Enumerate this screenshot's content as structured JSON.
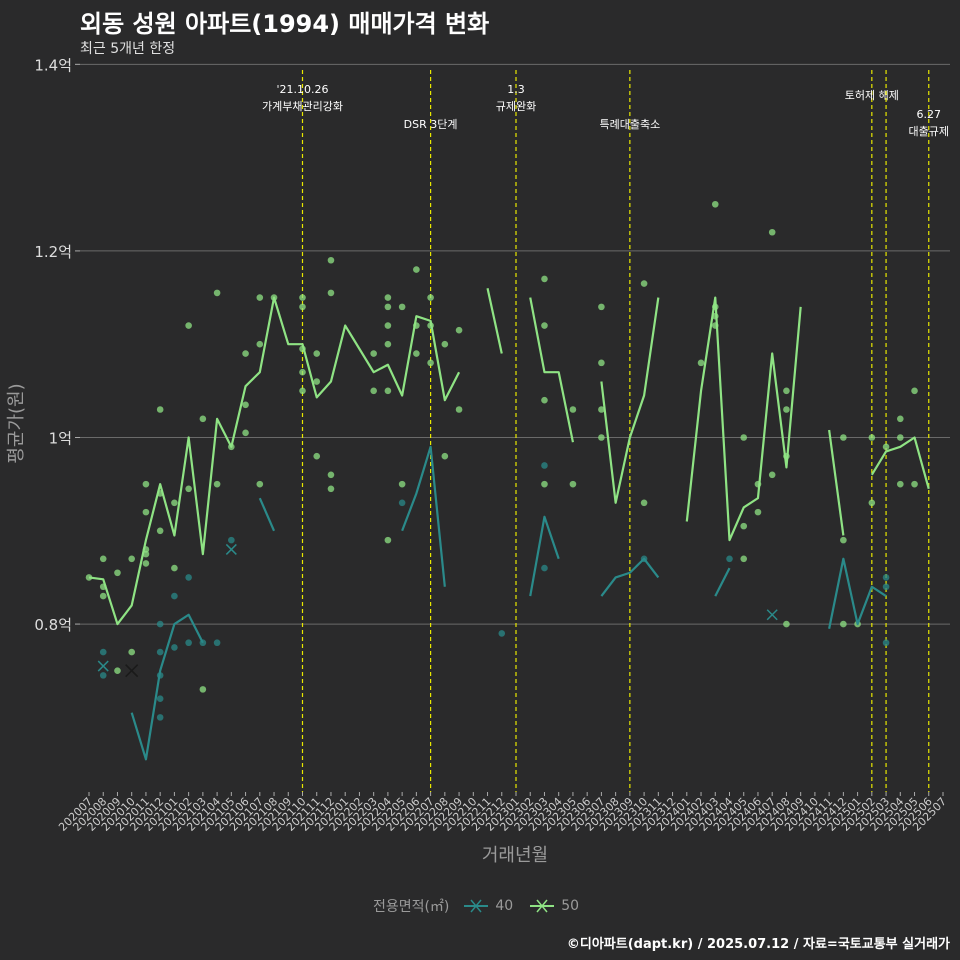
{
  "chart_data": {
    "type": "line",
    "title": "외동 성원 아파트(1994) 매매가격 변화",
    "subtitle": "최근 5개년 한정",
    "xlabel": "거래년월",
    "ylabel": "평균가(원)",
    "caption": "©디아파트(dapt.kr) / 2025.07.12 / 자료=국토교통부 실거래가",
    "legend_title": "전용면적(㎡)",
    "y_ticks": [
      {
        "value": 0.8,
        "label": "0.8억"
      },
      {
        "value": 1.0,
        "label": "1억"
      },
      {
        "value": 1.2,
        "label": "1.2억"
      },
      {
        "value": 1.4,
        "label": "1.4억"
      }
    ],
    "ylim": [
      0.62,
      1.41
    ],
    "categories": [
      "202007",
      "202008",
      "202009",
      "202010",
      "202011",
      "202012",
      "202101",
      "202102",
      "202103",
      "202104",
      "202105",
      "202106",
      "202107",
      "202108",
      "202109",
      "202110",
      "202111",
      "202112",
      "202201",
      "202202",
      "202203",
      "202204",
      "202205",
      "202206",
      "202207",
      "202208",
      "202209",
      "202210",
      "202211",
      "202212",
      "202301",
      "202302",
      "202303",
      "202304",
      "202305",
      "202306",
      "202307",
      "202308",
      "202309",
      "202310",
      "202311",
      "202312",
      "202401",
      "202402",
      "202403",
      "202404",
      "202405",
      "202406",
      "202407",
      "202408",
      "202409",
      "202410",
      "202411",
      "202412",
      "202501",
      "202502",
      "202503",
      "202504",
      "202505",
      "202506",
      "202507"
    ],
    "series": [
      {
        "name": "40",
        "color": "#2a8a8a",
        "values": [
          null,
          0.755,
          null,
          0.705,
          0.655,
          0.75,
          0.8,
          0.81,
          0.78,
          null,
          0.88,
          null,
          0.935,
          0.9,
          null,
          null,
          null,
          null,
          null,
          null,
          null,
          null,
          0.9,
          0.94,
          0.99,
          0.84,
          null,
          null,
          null,
          null,
          null,
          0.83,
          0.915,
          0.87,
          null,
          null,
          0.83,
          0.85,
          0.855,
          0.87,
          0.85,
          null,
          null,
          null,
          0.83,
          0.86,
          null,
          null,
          0.81,
          null,
          null,
          null,
          0.795,
          0.87,
          0.8,
          0.84,
          0.83,
          null,
          null,
          null,
          null
        ]
      },
      {
        "name": "50",
        "color": "#8fe384",
        "values": [
          0.85,
          0.848,
          0.8,
          0.82,
          0.89,
          0.95,
          0.895,
          1.0,
          0.875,
          1.02,
          0.99,
          1.055,
          1.07,
          1.15,
          1.1,
          1.1,
          1.043,
          1.06,
          1.12,
          1.095,
          1.07,
          1.078,
          1.045,
          1.13,
          1.125,
          1.04,
          1.07,
          null,
          1.16,
          1.09,
          null,
          1.15,
          1.07,
          1.07,
          0.995,
          null,
          1.06,
          0.93,
          1.0,
          1.045,
          1.15,
          null,
          0.91,
          1.05,
          1.15,
          0.89,
          0.925,
          0.935,
          1.09,
          0.968,
          1.14,
          null,
          1.008,
          0.895,
          null,
          0.96,
          0.985,
          0.99,
          1.0,
          0.945,
          null
        ]
      }
    ],
    "scatter_points": [
      {
        "series": "50",
        "x": "202007",
        "y": 0.85
      },
      {
        "series": "50",
        "x": "202008",
        "y": 0.87
      },
      {
        "series": "50",
        "x": "202008",
        "y": 0.84
      },
      {
        "series": "50",
        "x": "202008",
        "y": 0.83
      },
      {
        "series": "50",
        "x": "202009",
        "y": 0.855
      },
      {
        "series": "50",
        "x": "202009",
        "y": 0.75
      },
      {
        "series": "50",
        "x": "202010",
        "y": 0.87
      },
      {
        "series": "50",
        "x": "202010",
        "y": 0.77
      },
      {
        "series": "50",
        "x": "202011",
        "y": 0.95
      },
      {
        "series": "50",
        "x": "202011",
        "y": 0.92
      },
      {
        "series": "50",
        "x": "202011",
        "y": 0.88
      },
      {
        "series": "50",
        "x": "202011",
        "y": 0.875
      },
      {
        "series": "50",
        "x": "202011",
        "y": 0.865
      },
      {
        "series": "50",
        "x": "202012",
        "y": 1.03
      },
      {
        "series": "50",
        "x": "202012",
        "y": 0.94
      },
      {
        "series": "50",
        "x": "202012",
        "y": 0.9
      },
      {
        "series": "50",
        "x": "202101",
        "y": 0.93
      },
      {
        "series": "50",
        "x": "202101",
        "y": 0.86
      },
      {
        "series": "50",
        "x": "202102",
        "y": 1.12
      },
      {
        "series": "50",
        "x": "202102",
        "y": 0.945
      },
      {
        "series": "50",
        "x": "202103",
        "y": 1.02
      },
      {
        "series": "50",
        "x": "202103",
        "y": 0.73
      },
      {
        "series": "50",
        "x": "202104",
        "y": 1.155
      },
      {
        "series": "50",
        "x": "202104",
        "y": 0.95
      },
      {
        "series": "50",
        "x": "202105",
        "y": 0.99
      },
      {
        "series": "50",
        "x": "202106",
        "y": 1.09
      },
      {
        "series": "50",
        "x": "202106",
        "y": 1.035
      },
      {
        "series": "50",
        "x": "202106",
        "y": 1.005
      },
      {
        "series": "50",
        "x": "202107",
        "y": 1.15
      },
      {
        "series": "50",
        "x": "202107",
        "y": 1.1
      },
      {
        "series": "50",
        "x": "202107",
        "y": 0.95
      },
      {
        "series": "50",
        "x": "202108",
        "y": 1.15
      },
      {
        "series": "50",
        "x": "202110",
        "y": 1.15
      },
      {
        "series": "50",
        "x": "202110",
        "y": 1.14
      },
      {
        "series": "50",
        "x": "202110",
        "y": 1.095
      },
      {
        "series": "50",
        "x": "202110",
        "y": 1.07
      },
      {
        "series": "50",
        "x": "202110",
        "y": 1.05
      },
      {
        "series": "50",
        "x": "202111",
        "y": 1.09
      },
      {
        "series": "50",
        "x": "202111",
        "y": 1.06
      },
      {
        "series": "50",
        "x": "202111",
        "y": 0.98
      },
      {
        "series": "50",
        "x": "202112",
        "y": 1.19
      },
      {
        "series": "50",
        "x": "202112",
        "y": 1.155
      },
      {
        "series": "50",
        "x": "202112",
        "y": 0.96
      },
      {
        "series": "50",
        "x": "202112",
        "y": 0.945
      },
      {
        "series": "50",
        "x": "202203",
        "y": 1.09
      },
      {
        "series": "50",
        "x": "202203",
        "y": 1.05
      },
      {
        "series": "50",
        "x": "202204",
        "y": 1.15
      },
      {
        "series": "50",
        "x": "202204",
        "y": 1.14
      },
      {
        "series": "50",
        "x": "202204",
        "y": 1.12
      },
      {
        "series": "50",
        "x": "202204",
        "y": 1.1
      },
      {
        "series": "50",
        "x": "202204",
        "y": 1.05
      },
      {
        "series": "50",
        "x": "202204",
        "y": 0.89
      },
      {
        "series": "50",
        "x": "202205",
        "y": 1.14
      },
      {
        "series": "50",
        "x": "202205",
        "y": 0.95
      },
      {
        "series": "50",
        "x": "202206",
        "y": 1.18
      },
      {
        "series": "50",
        "x": "202206",
        "y": 1.12
      },
      {
        "series": "50",
        "x": "202206",
        "y": 1.09
      },
      {
        "series": "50",
        "x": "202207",
        "y": 1.15
      },
      {
        "series": "50",
        "x": "202207",
        "y": 1.12
      },
      {
        "series": "50",
        "x": "202207",
        "y": 1.08
      },
      {
        "series": "50",
        "x": "202208",
        "y": 1.1
      },
      {
        "series": "50",
        "x": "202208",
        "y": 0.98
      },
      {
        "series": "50",
        "x": "202209",
        "y": 1.115
      },
      {
        "series": "50",
        "x": "202209",
        "y": 1.03
      },
      {
        "series": "50",
        "x": "202303",
        "y": 1.17
      },
      {
        "series": "50",
        "x": "202303",
        "y": 1.12
      },
      {
        "series": "50",
        "x": "202303",
        "y": 1.04
      },
      {
        "series": "50",
        "x": "202303",
        "y": 0.95
      },
      {
        "series": "50",
        "x": "202305",
        "y": 1.03
      },
      {
        "series": "50",
        "x": "202305",
        "y": 0.95
      },
      {
        "series": "50",
        "x": "202307",
        "y": 1.14
      },
      {
        "series": "50",
        "x": "202307",
        "y": 1.08
      },
      {
        "series": "50",
        "x": "202307",
        "y": 1.03
      },
      {
        "series": "50",
        "x": "202307",
        "y": 1.0
      },
      {
        "series": "50",
        "x": "202310",
        "y": 1.165
      },
      {
        "series": "50",
        "x": "202310",
        "y": 0.93
      },
      {
        "series": "50",
        "x": "202402",
        "y": 1.08
      },
      {
        "series": "50",
        "x": "202403",
        "y": 1.25
      },
      {
        "series": "50",
        "x": "202403",
        "y": 1.14
      },
      {
        "series": "50",
        "x": "202403",
        "y": 1.13
      },
      {
        "series": "50",
        "x": "202403",
        "y": 1.12
      },
      {
        "series": "50",
        "x": "202405",
        "y": 1.0
      },
      {
        "series": "50",
        "x": "202405",
        "y": 0.905
      },
      {
        "series": "50",
        "x": "202405",
        "y": 0.87
      },
      {
        "series": "50",
        "x": "202406",
        "y": 0.95
      },
      {
        "series": "50",
        "x": "202406",
        "y": 0.92
      },
      {
        "series": "50",
        "x": "202407",
        "y": 1.22
      },
      {
        "series": "50",
        "x": "202407",
        "y": 0.96
      },
      {
        "series": "50",
        "x": "202408",
        "y": 1.05
      },
      {
        "series": "50",
        "x": "202408",
        "y": 1.03
      },
      {
        "series": "50",
        "x": "202408",
        "y": 0.98
      },
      {
        "series": "50",
        "x": "202408",
        "y": 0.8
      },
      {
        "series": "50",
        "x": "202412",
        "y": 1.0
      },
      {
        "series": "50",
        "x": "202412",
        "y": 0.89
      },
      {
        "series": "50",
        "x": "202412",
        "y": 0.8
      },
      {
        "series": "50",
        "x": "202501",
        "y": 0.8
      },
      {
        "series": "50",
        "x": "202502",
        "y": 1.0
      },
      {
        "series": "50",
        "x": "202502",
        "y": 0.93
      },
      {
        "series": "50",
        "x": "202503",
        "y": 0.99
      },
      {
        "series": "50",
        "x": "202504",
        "y": 1.02
      },
      {
        "series": "50",
        "x": "202504",
        "y": 1.0
      },
      {
        "series": "50",
        "x": "202504",
        "y": 0.95
      },
      {
        "series": "50",
        "x": "202505",
        "y": 1.05
      },
      {
        "series": "50",
        "x": "202505",
        "y": 0.95
      },
      {
        "series": "40",
        "x": "202008",
        "y": 0.77
      },
      {
        "series": "40",
        "x": "202008",
        "y": 0.745
      },
      {
        "series": "40",
        "x": "202012",
        "y": 0.8
      },
      {
        "series": "40",
        "x": "202012",
        "y": 0.77
      },
      {
        "series": "40",
        "x": "202012",
        "y": 0.745
      },
      {
        "series": "40",
        "x": "202012",
        "y": 0.72
      },
      {
        "series": "40",
        "x": "202012",
        "y": 0.7
      },
      {
        "series": "40",
        "x": "202101",
        "y": 0.83
      },
      {
        "series": "40",
        "x": "202101",
        "y": 0.775
      },
      {
        "series": "40",
        "x": "202102",
        "y": 0.85
      },
      {
        "series": "40",
        "x": "202102",
        "y": 0.78
      },
      {
        "series": "40",
        "x": "202103",
        "y": 0.78
      },
      {
        "series": "40",
        "x": "202104",
        "y": 0.78
      },
      {
        "series": "40",
        "x": "202105",
        "y": 0.89
      },
      {
        "series": "40",
        "x": "202205",
        "y": 0.93
      },
      {
        "series": "40",
        "x": "202212",
        "y": 0.79
      },
      {
        "series": "40",
        "x": "202303",
        "y": 0.97
      },
      {
        "series": "40",
        "x": "202303",
        "y": 0.86
      },
      {
        "series": "40",
        "x": "202310",
        "y": 0.87
      },
      {
        "series": "40",
        "x": "202404",
        "y": 0.87
      },
      {
        "series": "40",
        "x": "202503",
        "y": 0.85
      },
      {
        "series": "40",
        "x": "202503",
        "y": 0.84
      },
      {
        "series": "40",
        "x": "202503",
        "y": 0.78
      }
    ],
    "vlines": [
      {
        "x": "202110",
        "label": "'21.10.26\n가계부채관리강화",
        "level": 0
      },
      {
        "x": "202207",
        "label": "DSR 3단계",
        "level": 1
      },
      {
        "x": "202301",
        "label": "1.3\n규제완화",
        "level": 0
      },
      {
        "x": "202309",
        "label": "특례대출축소",
        "level": 1
      },
      {
        "x": "202502",
        "label": "토허제 해제",
        "level": 0
      },
      {
        "x": "202503",
        "label": "",
        "level": 0
      },
      {
        "x": "202506",
        "label": "6.27\n대출규제",
        "level": 2
      }
    ],
    "legend": [
      {
        "label": "40",
        "color": "#2a8a8a"
      },
      {
        "label": "50",
        "color": "#8fe384"
      }
    ],
    "grid": true
  }
}
